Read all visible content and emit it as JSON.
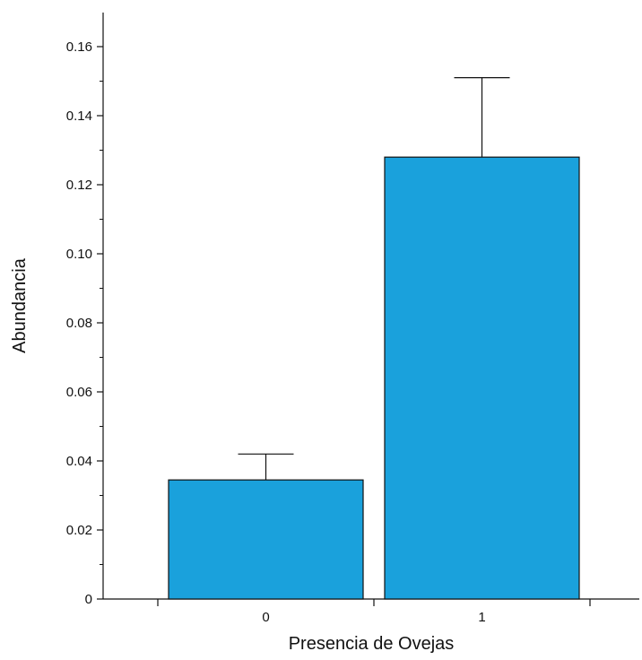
{
  "chart_data": {
    "type": "bar",
    "title": "",
    "xlabel": "Presencia de Ovejas",
    "ylabel": "Abundancia",
    "categories": [
      "0",
      "1"
    ],
    "values": [
      0.0345,
      0.128
    ],
    "error_upper": [
      0.042,
      0.151
    ],
    "ylim": [
      0,
      0.17
    ],
    "yticks": [
      0,
      0.02,
      0.04,
      0.06,
      0.08,
      0.1,
      0.12,
      0.14,
      0.16
    ],
    "ytick_labels": [
      "0",
      "0.02",
      "0.04",
      "0.06",
      "0.08",
      "0.10",
      "0.12",
      "0.14",
      "0.16"
    ],
    "yminor_ticks": [
      0.01,
      0.03,
      0.05,
      0.07,
      0.09,
      0.11,
      0.13,
      0.15
    ],
    "grid": false,
    "legend": "none",
    "bar_color": "#1aa1dc"
  }
}
